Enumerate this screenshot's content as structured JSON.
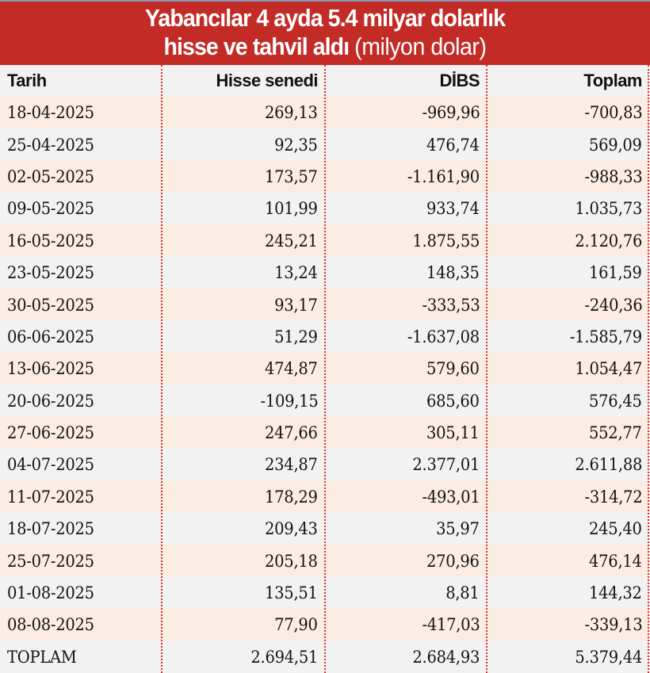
{
  "title": {
    "line1": "Yabancılar 4 ayda 5.4 milyar dolarlık",
    "line2_bold": "hisse ve tahvil aldı",
    "line2_unit": "(milyon dolar)"
  },
  "colors": {
    "title_bg": "#c32b27",
    "row_odd": "#fbede1",
    "row_even": "#f2f2f2",
    "divider": "#d9312c"
  },
  "table": {
    "headers": [
      "Tarih",
      "Hisse senedi",
      "DİBS",
      "Toplam"
    ],
    "rows": [
      [
        "18-04-2025",
        "269,13",
        "-969,96",
        "-700,83"
      ],
      [
        "25-04-2025",
        "92,35",
        "476,74",
        "569,09"
      ],
      [
        "02-05-2025",
        "173,57",
        "-1.161,90",
        "-988,33"
      ],
      [
        "09-05-2025",
        "101,99",
        "933,74",
        "1.035,73"
      ],
      [
        "16-05-2025",
        "245,21",
        "1.875,55",
        "2.120,76"
      ],
      [
        "23-05-2025",
        "13,24",
        "148,35",
        "161,59"
      ],
      [
        "30-05-2025",
        "93,17",
        "-333,53",
        "-240,36"
      ],
      [
        "06-06-2025",
        "51,29",
        "-1.637,08",
        "-1.585,79"
      ],
      [
        "13-06-2025",
        "474,87",
        "579,60",
        "1.054,47"
      ],
      [
        "20-06-2025",
        "-109,15",
        "685,60",
        "576,45"
      ],
      [
        "27-06-2025",
        "247,66",
        "305,11",
        "552,77"
      ],
      [
        "04-07-2025",
        "234,87",
        "2.377,01",
        "2.611,88"
      ],
      [
        "11-07-2025",
        "178,29",
        "-493,01",
        "-314,72"
      ],
      [
        "18-07-2025",
        "209,43",
        "35,97",
        "245,40"
      ],
      [
        "25-07-2025",
        "205,18",
        "270,96",
        "476,14"
      ],
      [
        "01-08-2025",
        "135,51",
        "8,81",
        "144,32"
      ],
      [
        "08-08-2025",
        "77,90",
        "-417,03",
        "-339,13"
      ],
      [
        "TOPLAM",
        "2.694,51",
        "2.684,93",
        "5.379,44"
      ]
    ]
  },
  "chart_data": {
    "type": "table",
    "title": "Yabancılar 4 ayda 5.4 milyar dolarlık hisse ve tahvil aldı (milyon dolar)",
    "columns": [
      "Tarih",
      "Hisse senedi",
      "DİBS",
      "Toplam"
    ],
    "categories": [
      "18-04-2025",
      "25-04-2025",
      "02-05-2025",
      "09-05-2025",
      "16-05-2025",
      "23-05-2025",
      "30-05-2025",
      "06-06-2025",
      "13-06-2025",
      "20-06-2025",
      "27-06-2025",
      "04-07-2025",
      "11-07-2025",
      "18-07-2025",
      "25-07-2025",
      "01-08-2025",
      "08-08-2025"
    ],
    "series": [
      {
        "name": "Hisse senedi",
        "values": [
          269.13,
          92.35,
          173.57,
          101.99,
          245.21,
          13.24,
          93.17,
          51.29,
          474.87,
          -109.15,
          247.66,
          234.87,
          178.29,
          209.43,
          205.18,
          135.51,
          77.9
        ]
      },
      {
        "name": "DİBS",
        "values": [
          -969.96,
          476.74,
          -1161.9,
          933.74,
          1875.55,
          148.35,
          -333.53,
          -1637.08,
          579.6,
          685.6,
          305.11,
          2377.01,
          -493.01,
          35.97,
          270.96,
          8.81,
          -417.03
        ]
      },
      {
        "name": "Toplam",
        "values": [
          -700.83,
          569.09,
          -988.33,
          1035.73,
          2120.76,
          161.59,
          -240.36,
          -1585.79,
          1054.47,
          576.45,
          552.77,
          2611.88,
          -314.72,
          245.4,
          476.14,
          144.32,
          -339.13
        ]
      }
    ],
    "totals": {
      "Hisse senedi": 2694.51,
      "DİBS": 2684.93,
      "Toplam": 5379.44
    }
  }
}
